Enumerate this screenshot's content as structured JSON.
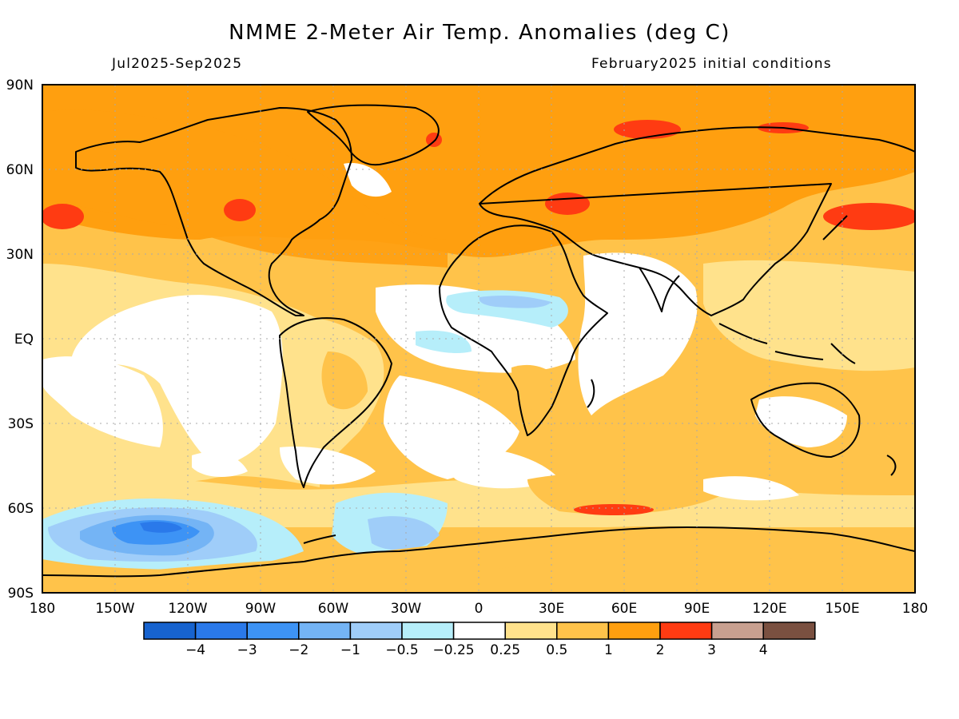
{
  "header": {
    "title": "NMME 2-Meter Air Temp. Anomalies (deg C)",
    "period": "Jul2025-Sep2025",
    "init": "February2025 initial conditions"
  },
  "map": {
    "projection": "equirectangular",
    "lat_ticks": [
      "90N",
      "60N",
      "30N",
      "EQ",
      "30S",
      "60S",
      "90S"
    ],
    "lon_ticks": [
      "180",
      "150W",
      "120W",
      "90W",
      "60W",
      "30W",
      "0",
      "30E",
      "60E",
      "90E",
      "120E",
      "150E",
      "180"
    ]
  },
  "legend": {
    "colors": [
      "#1763cf",
      "#2a79ea",
      "#3d93f5",
      "#74b4f5",
      "#9fcdf9",
      "#b6eefa",
      "#ffffff",
      "#ffe28c",
      "#ffc34a",
      "#ff9f0f",
      "#ff3b12",
      "#c8a090",
      "#7a5040"
    ],
    "labels": [
      "-4",
      "-3",
      "-2",
      "-1",
      "-0.5",
      "-0.25",
      "0.25",
      "0.5",
      "1",
      "2",
      "3",
      "4"
    ]
  }
}
